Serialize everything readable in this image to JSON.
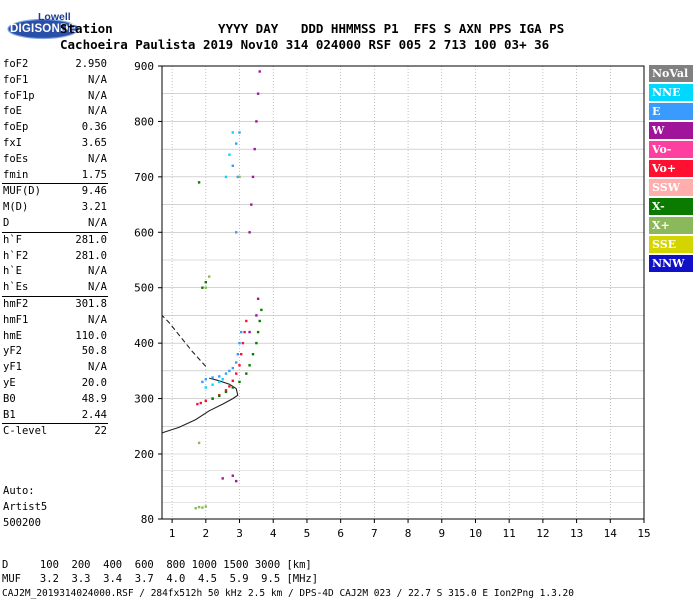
{
  "logo": {
    "line1": "Lowell",
    "line2": "DIGISONDE"
  },
  "header": {
    "row1": "Station              YYYY DAY   DDD HHMMSS P1  FFS S AXN PPS IGA PS",
    "row2": "Cachoeira Paulista 2019 Nov10 314 024000 RSF 005 2 713 100 03+ 36"
  },
  "params": [
    {
      "k": "foF2",
      "v": "2.950"
    },
    {
      "k": "foF1",
      "v": "N/A"
    },
    {
      "k": "foF1p",
      "v": "N/A"
    },
    {
      "k": "foE",
      "v": "N/A"
    },
    {
      "k": "foEp",
      "v": "0.36"
    },
    {
      "k": "fxI",
      "v": "3.65"
    },
    {
      "k": "foEs",
      "v": "N/A"
    },
    {
      "k": "fmin",
      "v": "1.75"
    },
    {
      "k": "MUF(D)",
      "v": "9.46"
    },
    {
      "k": "M(D)",
      "v": "3.21"
    },
    {
      "k": "D",
      "v": "N/A"
    },
    {
      "k": "h`F",
      "v": "281.0"
    },
    {
      "k": "h`F2",
      "v": "281.0"
    },
    {
      "k": "h`E",
      "v": "N/A"
    },
    {
      "k": "h`Es",
      "v": "N/A"
    },
    {
      "k": "hmF2",
      "v": "301.8"
    },
    {
      "k": "hmF1",
      "v": "N/A"
    },
    {
      "k": "hmE",
      "v": "110.0"
    },
    {
      "k": "yF2",
      "v": "50.8"
    },
    {
      "k": "yF1",
      "v": "N/A"
    },
    {
      "k": "yE",
      "v": "20.0"
    },
    {
      "k": "B0",
      "v": "48.9"
    },
    {
      "k": "B1",
      "v": "2.44"
    },
    {
      "k": "C-level",
      "v": "22"
    }
  ],
  "auto": {
    "l1": "Auto:",
    "l2": "Artist5",
    "l3": "500200"
  },
  "footer": {
    "d_row": "D     100  200  400  600  800 1000 1500 3000 [km]",
    "muf_row": "MUF   3.2  3.3  3.4  3.7  4.0  4.5  5.9  9.5 [MHz]",
    "info": "CAJ2M_2019314024000.RSF / 284fx512h 50 kHz 2.5 km / DPS-4D CAJ2M 023 / 22.7 S 315.0 E Ion2Png 1.3.20"
  },
  "legend": [
    {
      "label": "NoVal",
      "color": "#808080"
    },
    {
      "label": "NNE",
      "color": "#00d8ff"
    },
    {
      "label": "E",
      "color": "#3a9bff"
    },
    {
      "label": "W",
      "color": "#a0149a"
    },
    {
      "label": "Vo-",
      "color": "#ff3f9f"
    },
    {
      "label": "Vo+",
      "color": "#ff1030"
    },
    {
      "label": "SSW",
      "color": "#ffadad"
    },
    {
      "label": "X-",
      "color": "#0a7a00"
    },
    {
      "label": "X+",
      "color": "#8ab85a"
    },
    {
      "label": "SSE",
      "color": "#d4d400"
    },
    {
      "label": "NNW",
      "color": "#1010c8"
    }
  ],
  "chart_data": {
    "type": "scatter",
    "xlim": [
      0.7,
      15
    ],
    "ylim": [
      80,
      900
    ],
    "xticks": [
      1,
      2,
      3,
      4,
      5,
      6,
      7,
      8,
      9,
      10,
      11,
      12,
      13,
      14,
      15
    ],
    "yticks": [
      80,
      200,
      300,
      400,
      500,
      600,
      700,
      800,
      900
    ],
    "grid": true,
    "ytick_labels_shown": [
      80,
      200,
      300,
      400,
      500,
      600,
      700,
      800,
      900
    ],
    "profile_curve": [
      [
        0.7,
        238
      ],
      [
        1.2,
        248
      ],
      [
        1.7,
        262
      ],
      [
        2.1,
        278
      ],
      [
        2.5,
        290
      ],
      [
        2.8,
        300
      ],
      [
        2.95,
        306
      ],
      [
        2.9,
        318
      ],
      [
        2.7,
        326
      ],
      [
        2.4,
        332
      ],
      [
        2.1,
        337
      ]
    ],
    "extrapolation_dashed": [
      [
        2.0,
        358
      ],
      [
        1.6,
        385
      ],
      [
        1.2,
        415
      ],
      [
        0.9,
        438
      ],
      [
        0.7,
        450
      ]
    ],
    "traces": [
      {
        "name": "E",
        "color": "#3a9bff",
        "points": [
          [
            1.9,
            330
          ],
          [
            2.0,
            335
          ],
          [
            2.2,
            338
          ],
          [
            2.4,
            340
          ],
          [
            2.6,
            345
          ],
          [
            2.7,
            350
          ],
          [
            2.8,
            355
          ],
          [
            2.9,
            365
          ],
          [
            2.95,
            380
          ],
          [
            3.0,
            400
          ],
          [
            3.05,
            420
          ],
          [
            2.9,
            600
          ],
          [
            2.95,
            700
          ],
          [
            3.0,
            780
          ],
          [
            2.9,
            760
          ],
          [
            2.8,
            720
          ]
        ]
      },
      {
        "name": "W",
        "color": "#a0149a",
        "points": [
          [
            3.3,
            600
          ],
          [
            3.35,
            650
          ],
          [
            3.4,
            700
          ],
          [
            3.45,
            750
          ],
          [
            3.5,
            800
          ],
          [
            3.55,
            850
          ],
          [
            3.6,
            890
          ],
          [
            3.5,
            450
          ],
          [
            3.55,
            480
          ],
          [
            3.3,
            420
          ],
          [
            2.5,
            155
          ],
          [
            2.8,
            160
          ],
          [
            2.9,
            150
          ]
        ]
      },
      {
        "name": "Vo+",
        "color": "#ff1030",
        "points": [
          [
            1.75,
            290
          ],
          [
            1.85,
            292
          ],
          [
            2.0,
            296
          ],
          [
            2.2,
            300
          ],
          [
            2.4,
            306
          ],
          [
            2.6,
            315
          ],
          [
            2.7,
            322
          ],
          [
            2.8,
            332
          ],
          [
            2.9,
            345
          ],
          [
            3.0,
            360
          ],
          [
            3.05,
            380
          ],
          [
            3.1,
            400
          ],
          [
            3.15,
            420
          ],
          [
            3.2,
            440
          ]
        ]
      },
      {
        "name": "X-",
        "color": "#0a7a00",
        "points": [
          [
            2.2,
            300
          ],
          [
            2.4,
            305
          ],
          [
            2.6,
            312
          ],
          [
            2.8,
            320
          ],
          [
            3.0,
            330
          ],
          [
            3.2,
            345
          ],
          [
            3.3,
            360
          ],
          [
            3.4,
            380
          ],
          [
            3.5,
            400
          ],
          [
            3.55,
            420
          ],
          [
            3.6,
            440
          ],
          [
            3.65,
            460
          ],
          [
            1.9,
            500
          ],
          [
            2.0,
            510
          ],
          [
            1.8,
            690
          ]
        ]
      },
      {
        "name": "NNE",
        "color": "#00d8ff",
        "points": [
          [
            2.0,
            320
          ],
          [
            2.2,
            325
          ],
          [
            2.4,
            330
          ],
          [
            2.5,
            335
          ],
          [
            2.6,
            700
          ],
          [
            2.7,
            740
          ],
          [
            2.8,
            780
          ]
        ]
      },
      {
        "name": "X+",
        "color": "#8ab85a",
        "points": [
          [
            1.7,
            100
          ],
          [
            1.8,
            102
          ],
          [
            1.9,
            101
          ],
          [
            2.0,
            103
          ],
          [
            1.8,
            220
          ],
          [
            2.0,
            500
          ],
          [
            2.1,
            520
          ],
          [
            3.0,
            700
          ]
        ]
      }
    ],
    "xlabel": "",
    "ylabel": ""
  }
}
